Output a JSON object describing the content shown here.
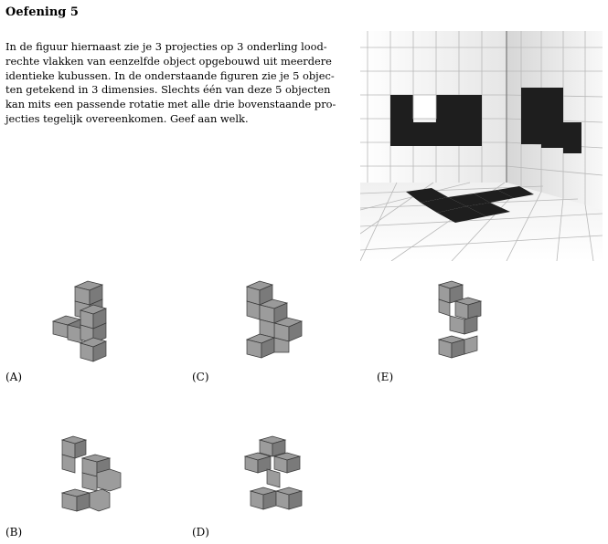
{
  "exercise": {
    "title": "Oefening 5",
    "intro_lines": [
      "In de figuur hiernaast zie je 3 projecties op 3 onderling lood-",
      "rechte vlakken van eenzelfde object opgebouwd uit meerdere",
      "identieke kubussen. In de onderstaande figuren zie je 5 objec-",
      "ten getekend in 3 dimensies. Slechts één van deze 5 objecten",
      "kan mits een passende rotatie met alle drie bovenstaande pro-",
      "jecties tegelijk overeenkomen. Geef aan welk."
    ]
  },
  "options": {
    "a": "(A)",
    "b": "(B)",
    "c": "(C)",
    "d": "(D)",
    "e": "(E)"
  },
  "colors": {
    "filled": "#1e1e1e",
    "grid_line": "#b8b8b8",
    "cube": "#8a8a8a"
  }
}
